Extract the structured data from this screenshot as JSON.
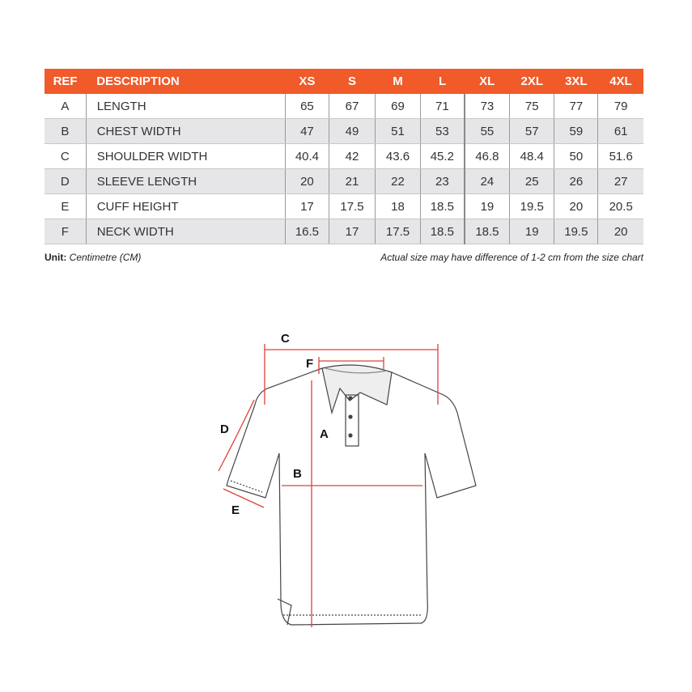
{
  "table": {
    "headers": [
      "REF",
      "DESCRIPTION",
      "XS",
      "S",
      "M",
      "L",
      "XL",
      "2XL",
      "3XL",
      "4XL"
    ],
    "rows": [
      {
        "ref": "A",
        "desc": "LENGTH",
        "values": [
          "65",
          "67",
          "69",
          "71",
          "73",
          "75",
          "77",
          "79"
        ]
      },
      {
        "ref": "B",
        "desc": "CHEST WIDTH",
        "values": [
          "47",
          "49",
          "51",
          "53",
          "55",
          "57",
          "59",
          "61"
        ]
      },
      {
        "ref": "C",
        "desc": "SHOULDER WIDTH",
        "values": [
          "40.4",
          "42",
          "43.6",
          "45.2",
          "46.8",
          "48.4",
          "50",
          "51.6"
        ]
      },
      {
        "ref": "D",
        "desc": "SLEEVE LENGTH",
        "values": [
          "20",
          "21",
          "22",
          "23",
          "24",
          "25",
          "26",
          "27"
        ]
      },
      {
        "ref": "E",
        "desc": "CUFF HEIGHT",
        "values": [
          "17",
          "17.5",
          "18",
          "18.5",
          "19",
          "19.5",
          "20",
          "20.5"
        ]
      },
      {
        "ref": "F",
        "desc": "NECK WIDTH",
        "values": [
          "16.5",
          "17",
          "17.5",
          "18.5",
          "18.5",
          "19",
          "19.5",
          "20"
        ]
      }
    ]
  },
  "unit": {
    "label": "Unit:",
    "value": "Centimetre (CM)"
  },
  "note": "Actual size may have difference of 1-2 cm from the size chart",
  "diagram": {
    "labels": {
      "a": "A",
      "b": "B",
      "c": "C",
      "d": "D",
      "e": "E",
      "f": "F"
    }
  },
  "colors": {
    "header": "#f15a29",
    "measure": "#e0403a",
    "alt_row": "#e6e6e8"
  }
}
